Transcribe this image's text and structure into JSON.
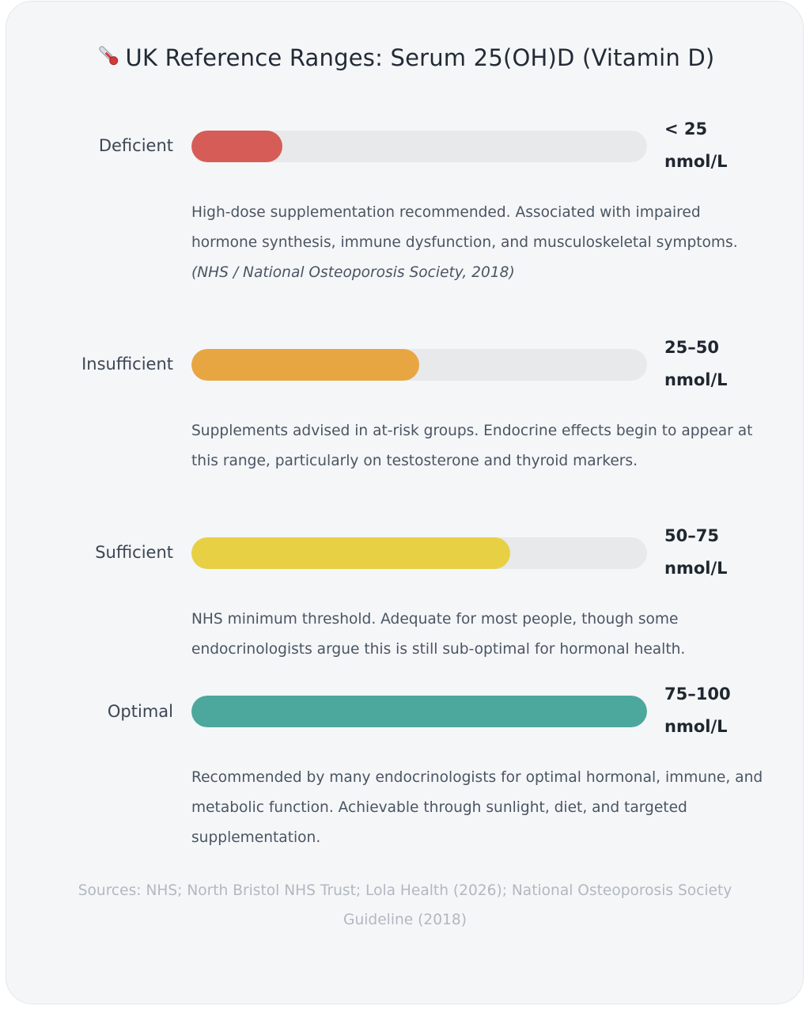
{
  "title": "UK Reference Ranges: Serum 25(OH)D (Vitamin D)",
  "title_icon": "thermometer-icon",
  "chart_data": {
    "type": "bar",
    "orientation": "horizontal",
    "title": "UK Reference Ranges: Serum 25(OH)D (Vitamin D)",
    "categories": [
      "Deficient",
      "Insufficient",
      "Sufficient",
      "Optimal"
    ],
    "values": [
      20,
      50,
      70,
      100
    ],
    "value_unit": "percent of bar",
    "range_labels": [
      "< 25",
      "25–50",
      "50–75",
      "75–100"
    ],
    "range_unit": "nmol/L",
    "colors": [
      "#d65c58",
      "#e8a643",
      "#e8d045",
      "#4ca89c"
    ],
    "track_color": "#e8e9eb",
    "grid": false,
    "legend": "none"
  },
  "rows": [
    {
      "label": "Deficient",
      "range": "< 25",
      "unit": "nmol/L",
      "desc": "High-dose supplementation recommended. Associated with impaired hormone synthesis, immune dysfunction, and musculoskeletal symptoms. ",
      "cite": "(NHS / National Osteoporosis Society, 2018)"
    },
    {
      "label": "Insufficient",
      "range": "25–50",
      "unit": "nmol/L",
      "desc": "Supplements advised in at-risk groups. Endocrine effects begin to appear at this range, particularly on testosterone and thyroid markers.",
      "cite": ""
    },
    {
      "label": "Sufficient",
      "range": "50–75",
      "unit": "nmol/L",
      "desc": "NHS minimum threshold. Adequate for most people, though some endocrinologists argue this is still sub-optimal for hormonal health.",
      "cite": ""
    },
    {
      "label": "Optimal",
      "range": "75–100",
      "unit": "nmol/L",
      "desc": "Recommended by many endocrinologists for optimal hormonal, immune, and metabolic function. Achievable through sunlight, diet, and targeted supplementation.",
      "cite": ""
    }
  ],
  "sources": "Sources: NHS; North Bristol NHS Trust; Lola Health (2026); National Osteoporosis Society Guideline (2018)"
}
